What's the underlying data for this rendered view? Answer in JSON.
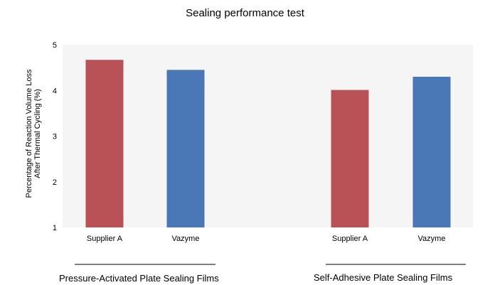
{
  "chart_data": {
    "type": "bar",
    "title": "Sealing performance test",
    "ylabel_lines": [
      "Percentage of Reaction Volume Loss",
      "After Thermal Cycling (%)"
    ],
    "ylim": [
      1,
      5
    ],
    "yticks": [
      1,
      2,
      3,
      4,
      5
    ],
    "grid": false,
    "groups": [
      {
        "name": "Pressure-Activated Plate Sealing Films",
        "bars": [
          {
            "category": "Supplier A",
            "value": 4.67,
            "color": "#b85257"
          },
          {
            "category": "Vazyme",
            "value": 4.45,
            "color": "#4a78b6"
          }
        ]
      },
      {
        "name": "Self-Adhesive Plate Sealing Films",
        "bars": [
          {
            "category": "Supplier A",
            "value": 4.01,
            "color": "#b85257"
          },
          {
            "category": "Vazyme",
            "value": 4.3,
            "color": "#4a78b6"
          }
        ]
      }
    ]
  },
  "colors": {
    "plot_background": "#f5f5f5",
    "supplier_a": "#b85257",
    "vazyme": "#4a78b6"
  }
}
